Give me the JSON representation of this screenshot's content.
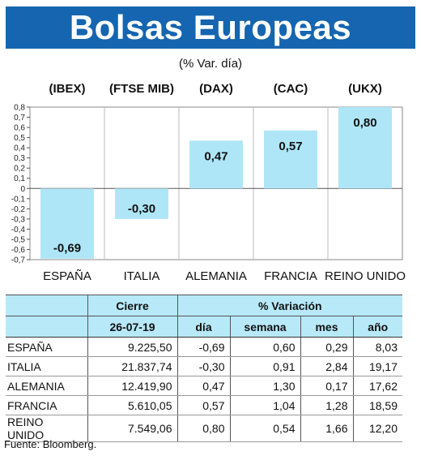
{
  "header": {
    "title": "Bolsas Europeas",
    "subtitle": "(% Var. día)",
    "tickers": [
      "(IBEX)",
      "(FTSE MIB)",
      "(DAX)",
      "(CAC)",
      "(UKX)"
    ]
  },
  "chart_data": {
    "type": "bar",
    "title": "Bolsas Europeas",
    "subtitle": "(% Var. día)",
    "categories": [
      "ESPAÑA",
      "ITALIA",
      "ALEMANIA",
      "FRANCIA",
      "REINO UNIDO"
    ],
    "values": [
      -0.69,
      -0.3,
      0.47,
      0.57,
      0.8
    ],
    "value_labels": [
      "-0,69",
      "-0,30",
      "0,47",
      "0,57",
      "0,80"
    ],
    "ylim": [
      -0.7,
      0.8
    ],
    "yticks": [
      "0,8",
      "0,7",
      "0,6",
      "0,5",
      "0,4",
      "0,3",
      "0,2",
      "0,1",
      "0",
      "-0,1",
      "-0,2",
      "-0,3",
      "-0,4",
      "-0,5",
      "-0,6",
      "-0,7"
    ],
    "grid": true,
    "bar_color": "#aee6f8"
  },
  "table": {
    "group_headers": {
      "cierre": "Cierre",
      "variacion": "% Variación"
    },
    "sub_headers": {
      "date": "26-07-19",
      "dia": "día",
      "semana": "semana",
      "mes": "mes",
      "ano": "año"
    },
    "rows": [
      {
        "name": "ESPAÑA",
        "cierre": "9.225,50",
        "dia": "-0,69",
        "semana": "0,60",
        "mes": "0,29",
        "ano": "8,03"
      },
      {
        "name": "ITALIA",
        "cierre": "21.837,74",
        "dia": "-0,30",
        "semana": "0,91",
        "mes": "2,84",
        "ano": "19,17"
      },
      {
        "name": "ALEMANIA",
        "cierre": "12.419,90",
        "dia": "0,47",
        "semana": "1,30",
        "mes": "0,17",
        "ano": "17,62"
      },
      {
        "name": "FRANCIA",
        "cierre": "5.610,05",
        "dia": "0,57",
        "semana": "1,04",
        "mes": "1,28",
        "ano": "18,59"
      },
      {
        "name": "REINO UNIDO",
        "cierre": "7.549,06",
        "dia": "0,80",
        "semana": "0,54",
        "mes": "1,66",
        "ano": "12,20"
      }
    ]
  },
  "footer": {
    "source": "Fuente: Bloomberg."
  },
  "colors": {
    "banner": "#1565b0",
    "header_fill": "#b7e9f8"
  }
}
